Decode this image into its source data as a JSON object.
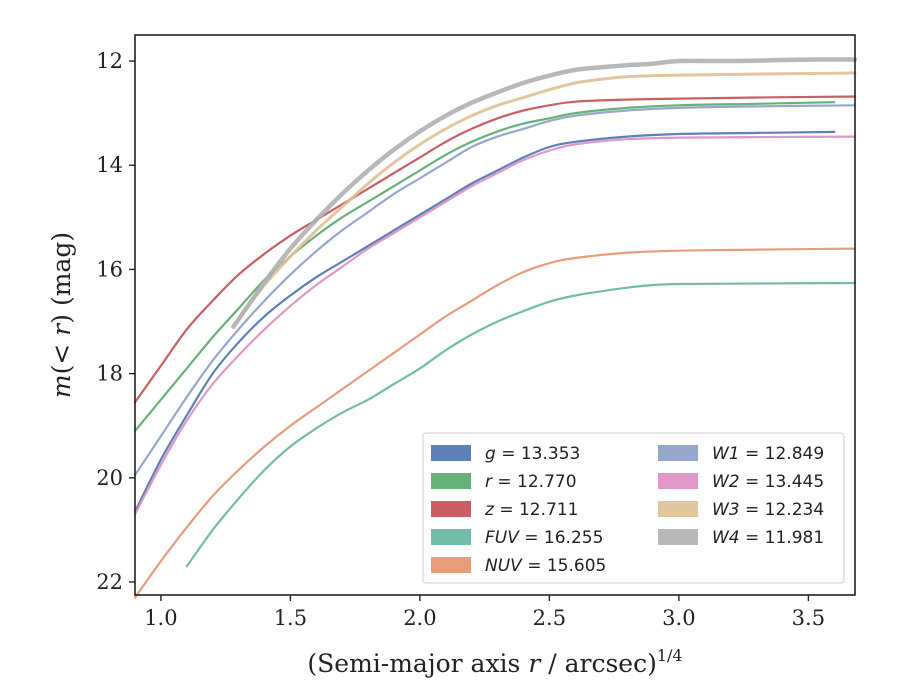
{
  "chart_data": {
    "type": "line",
    "xlabel": "(Semi-major axis r / arcsec)1/4",
    "xlabel_parts": {
      "prefix": "(Semi-major axis ",
      "var": "r",
      "suffix": " / arcsec)",
      "sup": "1/4"
    },
    "ylabel": "m(< r) (mag)",
    "ylabel_parts": {
      "m": "m",
      "mid": "(< ",
      "r": "r",
      "end": ") (mag)"
    },
    "xlim": [
      0.9,
      3.68
    ],
    "ylim": [
      22.25,
      11.5
    ],
    "y_inverted": true,
    "xticks": [
      1.0,
      1.5,
      2.0,
      2.5,
      3.0,
      3.5
    ],
    "xtick_labels": [
      "1.0",
      "1.5",
      "2.0",
      "2.5",
      "3.0",
      "3.5"
    ],
    "yticks": [
      12,
      14,
      16,
      18,
      20,
      22
    ],
    "ytick_labels": [
      "12",
      "14",
      "16",
      "18",
      "20",
      "22"
    ],
    "grid": false,
    "legend_position": "lower-right",
    "series": [
      {
        "name": "g",
        "value": "13.353",
        "color": "#4c72b0",
        "x": [
          0.9,
          1.0,
          1.1,
          1.2,
          1.3,
          1.4,
          1.5,
          1.6,
          1.7,
          1.8,
          1.9,
          2.0,
          2.1,
          2.2,
          2.3,
          2.4,
          2.5,
          2.6,
          2.8,
          3.0,
          3.3,
          3.6
        ],
        "y": [
          20.65,
          19.65,
          18.8,
          18.0,
          17.4,
          16.9,
          16.5,
          16.15,
          15.85,
          15.55,
          15.25,
          14.95,
          14.65,
          14.35,
          14.1,
          13.85,
          13.65,
          13.55,
          13.45,
          13.4,
          13.38,
          13.36
        ]
      },
      {
        "name": "r",
        "value": "12.770",
        "color": "#55a868",
        "x": [
          0.9,
          1.0,
          1.1,
          1.2,
          1.3,
          1.4,
          1.5,
          1.6,
          1.7,
          1.8,
          1.9,
          2.0,
          2.1,
          2.2,
          2.3,
          2.4,
          2.5,
          2.6,
          2.8,
          3.0,
          3.3,
          3.6
        ],
        "y": [
          19.1,
          18.5,
          17.9,
          17.3,
          16.75,
          16.2,
          15.75,
          15.35,
          15.0,
          14.7,
          14.4,
          14.1,
          13.8,
          13.55,
          13.35,
          13.2,
          13.1,
          13.0,
          12.9,
          12.85,
          12.82,
          12.79
        ]
      },
      {
        "name": "z",
        "value": "12.711",
        "color": "#c44e52",
        "x": [
          0.9,
          1.0,
          1.1,
          1.2,
          1.3,
          1.4,
          1.5,
          1.6,
          1.7,
          1.8,
          1.9,
          2.0,
          2.1,
          2.2,
          2.3,
          2.4,
          2.5,
          2.6,
          2.8,
          3.0,
          3.3,
          3.68
        ],
        "y": [
          18.55,
          17.85,
          17.15,
          16.6,
          16.1,
          15.7,
          15.35,
          15.05,
          14.75,
          14.45,
          14.15,
          13.85,
          13.55,
          13.3,
          13.1,
          12.95,
          12.85,
          12.78,
          12.74,
          12.72,
          12.7,
          12.68
        ]
      },
      {
        "name": "FUV",
        "value": "16.255",
        "color": "#64b5a0",
        "x": [
          1.1,
          1.2,
          1.3,
          1.4,
          1.5,
          1.6,
          1.7,
          1.8,
          1.9,
          2.0,
          2.1,
          2.2,
          2.3,
          2.4,
          2.5,
          2.6,
          2.7,
          2.8,
          2.9,
          3.0,
          3.3,
          3.68
        ],
        "y": [
          21.7,
          21.0,
          20.4,
          19.85,
          19.4,
          19.05,
          18.75,
          18.5,
          18.2,
          17.9,
          17.55,
          17.25,
          17.0,
          16.8,
          16.62,
          16.5,
          16.42,
          16.35,
          16.3,
          16.28,
          16.27,
          16.26
        ]
      },
      {
        "name": "NUV",
        "value": "15.605",
        "color": "#e8916c",
        "x": [
          0.9,
          1.0,
          1.1,
          1.2,
          1.3,
          1.4,
          1.5,
          1.6,
          1.7,
          1.8,
          1.9,
          2.0,
          2.1,
          2.2,
          2.3,
          2.4,
          2.5,
          2.6,
          2.8,
          3.0,
          3.3,
          3.68
        ],
        "y": [
          22.3,
          21.6,
          20.95,
          20.35,
          19.85,
          19.4,
          19.0,
          18.65,
          18.3,
          17.95,
          17.6,
          17.25,
          16.9,
          16.6,
          16.3,
          16.05,
          15.88,
          15.78,
          15.68,
          15.64,
          15.62,
          15.6
        ]
      },
      {
        "name": "W1",
        "value": "12.849",
        "color": "#8c9dc6",
        "x": [
          0.9,
          1.0,
          1.1,
          1.2,
          1.3,
          1.4,
          1.5,
          1.6,
          1.7,
          1.8,
          1.9,
          2.0,
          2.1,
          2.2,
          2.3,
          2.4,
          2.5,
          2.6,
          2.8,
          3.0,
          3.3,
          3.68
        ],
        "y": [
          19.95,
          19.2,
          18.45,
          17.75,
          17.15,
          16.6,
          16.1,
          15.65,
          15.25,
          14.9,
          14.55,
          14.25,
          13.95,
          13.65,
          13.45,
          13.3,
          13.15,
          13.05,
          12.95,
          12.9,
          12.87,
          12.85
        ]
      },
      {
        "name": "W2",
        "value": "13.445",
        "color": "#dd8cc3",
        "x": [
          0.9,
          1.0,
          1.1,
          1.2,
          1.3,
          1.4,
          1.5,
          1.6,
          1.7,
          1.8,
          1.9,
          2.0,
          2.1,
          2.2,
          2.3,
          2.4,
          2.5,
          2.6,
          2.8,
          3.0,
          3.3,
          3.68
        ],
        "y": [
          20.7,
          19.75,
          18.9,
          18.2,
          17.65,
          17.15,
          16.7,
          16.3,
          15.95,
          15.6,
          15.3,
          15.0,
          14.7,
          14.4,
          14.15,
          13.9,
          13.72,
          13.6,
          13.5,
          13.47,
          13.46,
          13.45
        ]
      },
      {
        "name": "W3",
        "value": "12.234",
        "color": "#dfc096",
        "x": [
          1.3,
          1.4,
          1.5,
          1.6,
          1.7,
          1.8,
          1.9,
          2.0,
          2.1,
          2.2,
          2.3,
          2.4,
          2.5,
          2.6,
          2.7,
          2.8,
          3.0,
          3.3,
          3.68
        ],
        "y": [
          16.95,
          16.3,
          15.75,
          15.25,
          14.8,
          14.35,
          13.95,
          13.6,
          13.3,
          13.05,
          12.85,
          12.7,
          12.55,
          12.42,
          12.35,
          12.3,
          12.27,
          12.25,
          12.23
        ]
      },
      {
        "name": "W4",
        "value": "11.981",
        "color": "#b0b0b0",
        "x": [
          1.28,
          1.4,
          1.5,
          1.6,
          1.7,
          1.8,
          1.9,
          2.0,
          2.1,
          2.2,
          2.3,
          2.4,
          2.5,
          2.6,
          2.7,
          2.8,
          2.9,
          3.0,
          3.2,
          3.4,
          3.55,
          3.68
        ],
        "y": [
          17.1,
          16.25,
          15.6,
          15.05,
          14.55,
          14.1,
          13.7,
          13.35,
          13.05,
          12.8,
          12.6,
          12.42,
          12.28,
          12.17,
          12.12,
          12.08,
          12.05,
          12.0,
          12.0,
          11.98,
          11.97,
          11.97
        ]
      }
    ],
    "legend": [
      {
        "var": "g",
        "text": " = 13.353",
        "color": "#4c72b0"
      },
      {
        "var": "r",
        "text": " = 12.770",
        "color": "#55a868"
      },
      {
        "var": "z",
        "text": " = 12.711",
        "color": "#c44e52"
      },
      {
        "var": "FUV",
        "text": " = 16.255",
        "color": "#64b5a0"
      },
      {
        "var": "NUV",
        "text": " = 15.605",
        "color": "#e8916c"
      },
      {
        "var": "W1",
        "text": " = 12.849",
        "color": "#8c9dc6"
      },
      {
        "var": "W2",
        "text": " = 13.445",
        "color": "#dd8cc3"
      },
      {
        "var": "W3",
        "text": " = 12.234",
        "color": "#dfc096"
      },
      {
        "var": "W4",
        "text": " = 11.981",
        "color": "#b0b0b0"
      }
    ]
  }
}
